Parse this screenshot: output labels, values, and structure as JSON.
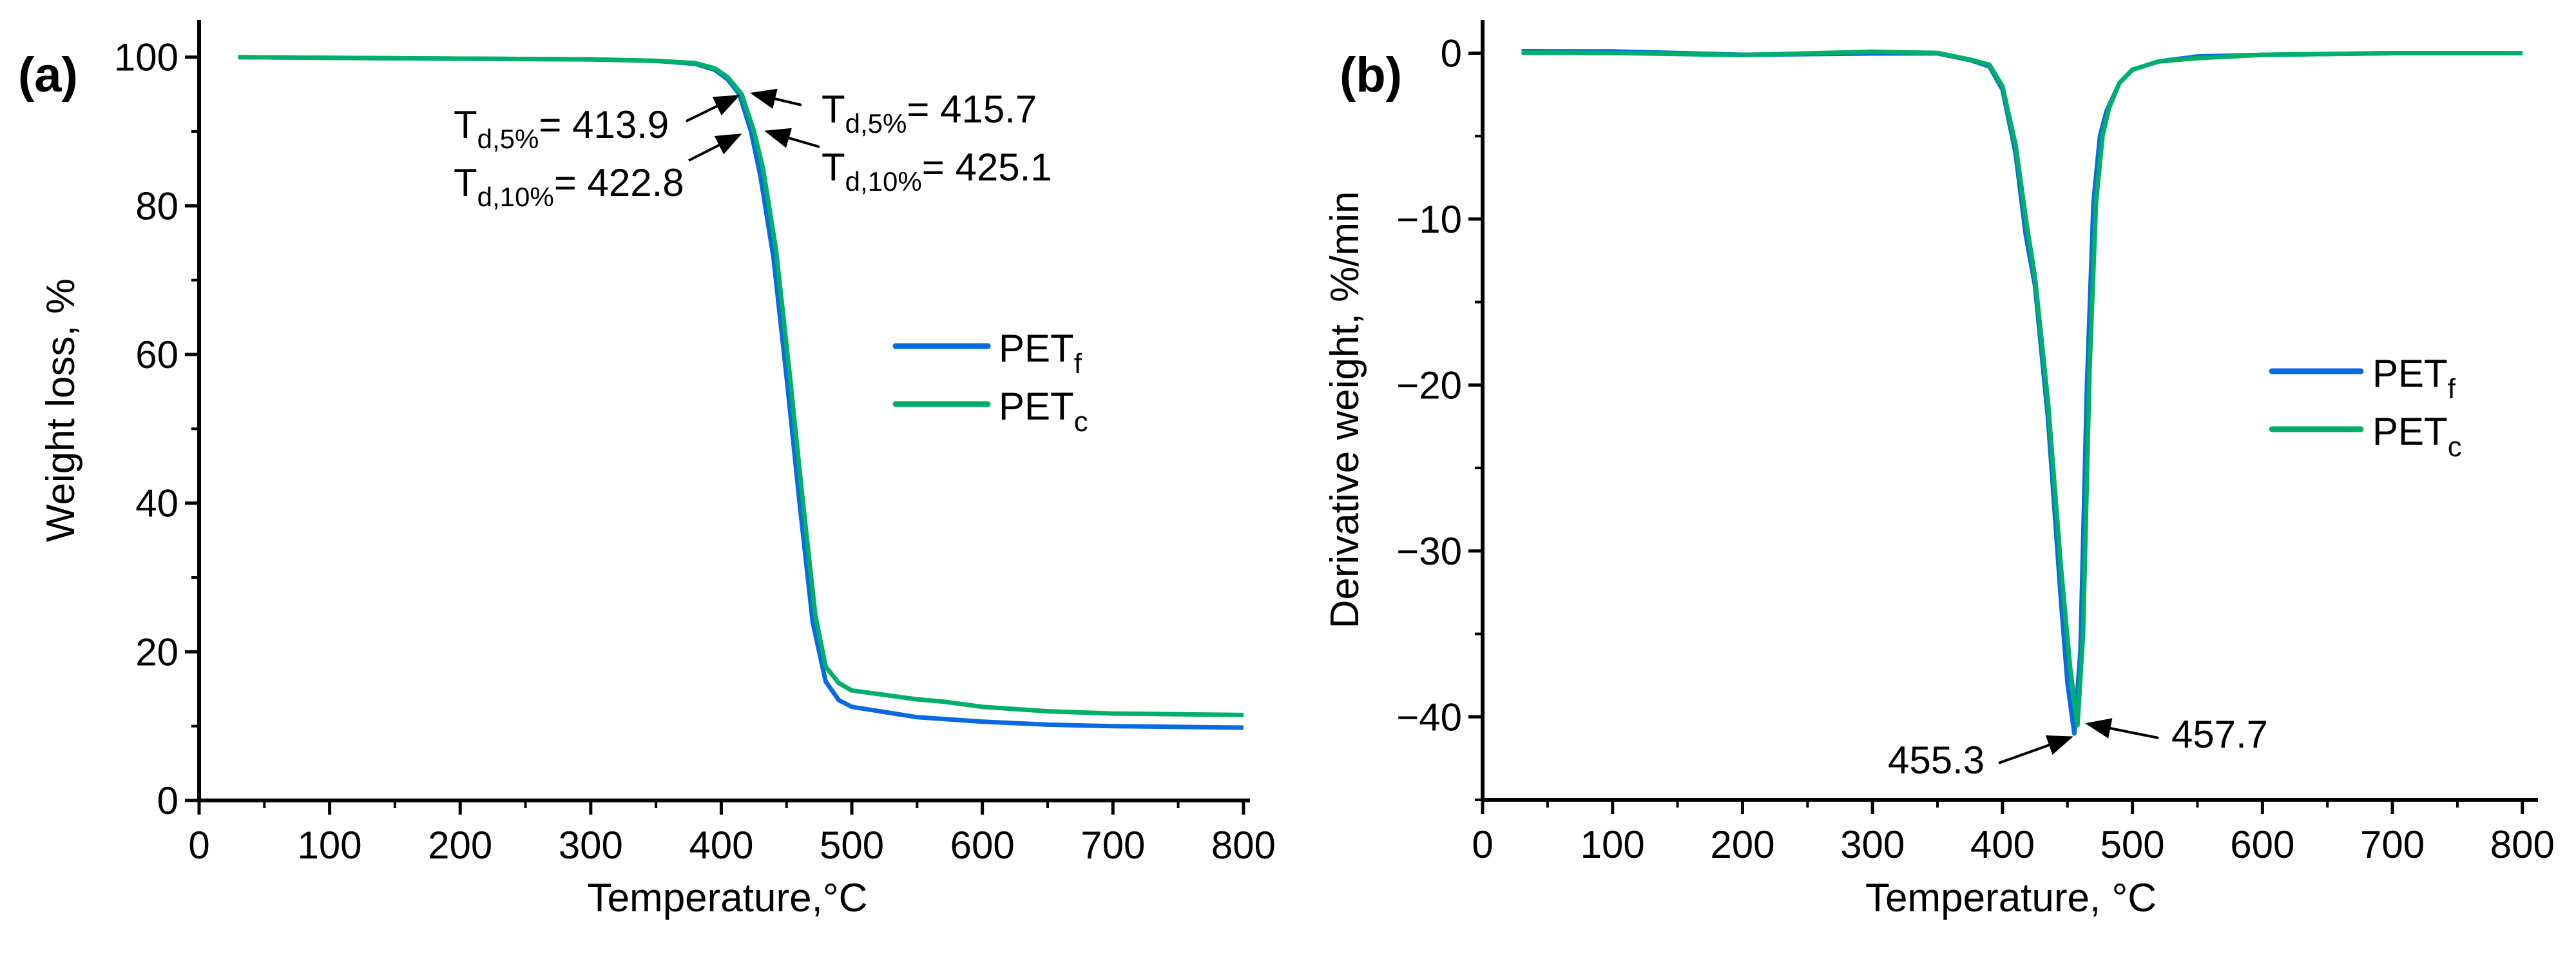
{
  "colors": {
    "PET_f": "#0a6be0",
    "PET_c": "#00b06a"
  },
  "chart_data": [
    {
      "panel_label": "(a)",
      "type": "line",
      "xlabel": "Temperature,°C",
      "ylabel": "Weight loss, %",
      "xlim": [
        0,
        805
      ],
      "ylim": [
        0,
        105
      ],
      "xticks": [
        0,
        100,
        200,
        300,
        400,
        500,
        600,
        700,
        800
      ],
      "yticks": [
        0,
        20,
        40,
        60,
        80,
        100
      ],
      "grid": false,
      "legend_placement": "center-right",
      "series": [
        {
          "name": "PET",
          "sub": "f",
          "color_key": "PET_f",
          "x": [
            30,
            100,
            200,
            300,
            350,
            380,
            395,
            405,
            413.9,
            422.8,
            430,
            440,
            450,
            460,
            470,
            480,
            490,
            500,
            550,
            600,
            650,
            700,
            800
          ],
          "y": [
            100,
            99.9,
            99.8,
            99.7,
            99.5,
            99.1,
            98.3,
            97,
            95,
            90,
            84,
            73,
            57,
            40,
            24,
            16,
            13.5,
            12.6,
            11.2,
            10.6,
            10.2,
            10.0,
            9.8
          ]
        },
        {
          "name": "PET",
          "sub": "c",
          "color_key": "PET_c",
          "x": [
            30,
            100,
            200,
            300,
            350,
            380,
            395,
            405,
            415.7,
            425.1,
            432,
            442,
            452,
            462,
            472,
            480,
            490,
            500,
            550,
            570,
            600,
            650,
            700,
            800
          ],
          "y": [
            100,
            99.9,
            99.8,
            99.7,
            99.5,
            99.2,
            98.5,
            97.3,
            95,
            90,
            85,
            74,
            58,
            41,
            25,
            18,
            15.8,
            14.8,
            13.6,
            13.3,
            12.6,
            12.0,
            11.7,
            11.5
          ]
        }
      ],
      "annotations": [
        {
          "main": "T",
          "sub": "d,5%",
          "rest": "= 413.9"
        },
        {
          "main": "T",
          "sub": "d,10%",
          "rest": "= 422.8"
        },
        {
          "main": "T",
          "sub": "d,5%",
          "rest": "= 415.7"
        },
        {
          "main": "T",
          "sub": "d,10%",
          "rest": "= 425.1"
        }
      ]
    },
    {
      "panel_label": "(b)",
      "type": "line",
      "xlabel": "Temperature, °C",
      "ylabel": "Derivative weight, %/min",
      "xlim": [
        0,
        812
      ],
      "ylim": [
        -45,
        2
      ],
      "xticks": [
        0,
        100,
        200,
        300,
        400,
        500,
        600,
        700,
        800
      ],
      "yticks": [
        -40,
        -30,
        -20,
        -10,
        0
      ],
      "grid": false,
      "legend_placement": "center-right",
      "series": [
        {
          "name": "PET",
          "sub": "f",
          "color_key": "PET_f",
          "x": [
            30,
            100,
            200,
            300,
            350,
            375,
            390,
            400,
            410,
            418,
            425,
            435,
            445,
            450,
            455.3,
            460,
            465,
            470,
            475,
            480,
            490,
            500,
            520,
            550,
            600,
            700,
            800
          ],
          "y": [
            0,
            0,
            0,
            0,
            -0.1,
            -0.3,
            -0.8,
            -2.2,
            -6,
            -11,
            -14,
            -22,
            -33,
            -38,
            -41,
            -36,
            -20,
            -9,
            -5,
            -3.5,
            -1.8,
            -1.0,
            -0.5,
            -0.2,
            -0.1,
            0,
            0
          ]
        },
        {
          "name": "PET",
          "sub": "c",
          "color_key": "PET_c",
          "x": [
            30,
            100,
            200,
            300,
            350,
            375,
            390,
            400,
            410,
            418,
            425,
            435,
            445,
            452,
            457.7,
            462,
            467,
            472,
            477,
            482,
            490,
            500,
            520,
            550,
            600,
            700,
            800
          ],
          "y": [
            0,
            0,
            0,
            0,
            -0.1,
            -0.3,
            -0.7,
            -2.0,
            -5.5,
            -10,
            -13.5,
            -21,
            -31,
            -37,
            -40.5,
            -35,
            -19,
            -9,
            -5,
            -3.3,
            -1.8,
            -1.0,
            -0.5,
            -0.3,
            -0.1,
            0,
            0
          ]
        }
      ],
      "annotations": [
        {
          "rest": "455.3"
        },
        {
          "rest": "457.7"
        }
      ]
    }
  ]
}
